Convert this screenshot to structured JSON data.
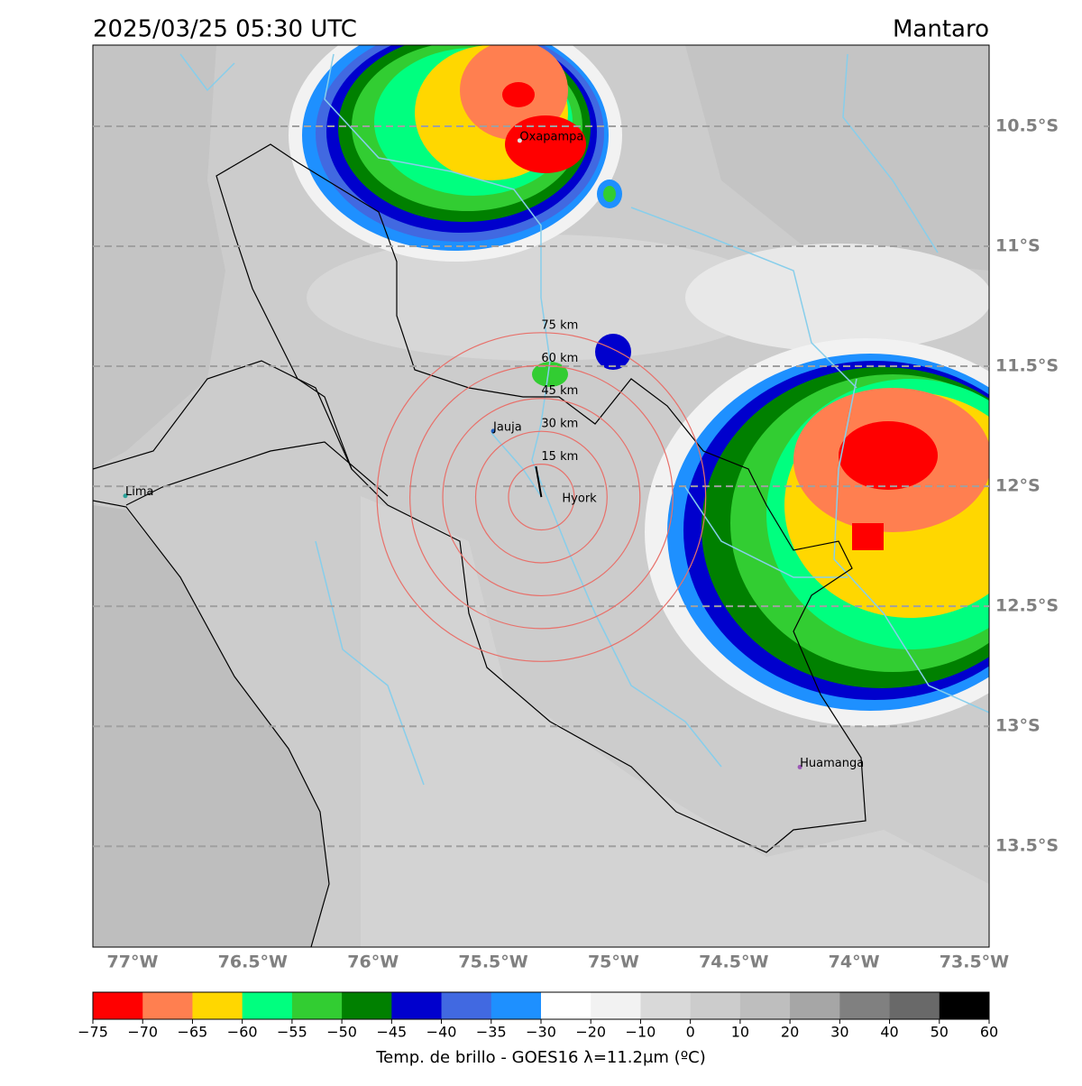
{
  "header": {
    "title": "2025/03/25 05:30 UTC",
    "region": "Mantaro"
  },
  "map": {
    "lon_range": [
      -77.165,
      -73.438
    ],
    "lat_range": [
      -10.162,
      -13.92
    ],
    "lat_ticks": [
      {
        "value": -10.5,
        "label": "10.5°S"
      },
      {
        "value": -11,
        "label": "11°S"
      },
      {
        "value": -11.5,
        "label": "11.5°S"
      },
      {
        "value": -12,
        "label": "12°S"
      },
      {
        "value": -12.5,
        "label": "12.5°S"
      },
      {
        "value": -13,
        "label": "13°S"
      },
      {
        "value": -13.5,
        "label": "13.5°S"
      }
    ],
    "lon_ticks": [
      {
        "value": -77,
        "label": "77°W"
      },
      {
        "value": -76.5,
        "label": "76.5°W"
      },
      {
        "value": -76,
        "label": "76°W"
      },
      {
        "value": -75.5,
        "label": "75.5°W"
      },
      {
        "value": -75,
        "label": "75°W"
      },
      {
        "value": -74.5,
        "label": "74.5°W"
      },
      {
        "value": -74,
        "label": "74°W"
      },
      {
        "value": -73.5,
        "label": "73.5°W"
      }
    ],
    "places": [
      {
        "name": "Oxapampa",
        "lon": -75.39,
        "lat": -10.56,
        "color": "#e0e0e0"
      },
      {
        "name": "Jauja",
        "lon": -75.5,
        "lat": -11.77,
        "color": "#1f5fbf"
      },
      {
        "name": "Lima",
        "lon": -77.03,
        "lat": -12.04,
        "color": "#2aa198"
      },
      {
        "name": "Huamanga",
        "lon": -74.225,
        "lat": -13.17,
        "color": "#9b59b6"
      }
    ],
    "radar": {
      "name": "Hyork",
      "lon": -75.3,
      "lat": -12.045,
      "rings": [
        {
          "value": 15,
          "label": "15 km"
        },
        {
          "value": 30,
          "label": "30 km"
        },
        {
          "value": 45,
          "label": "45 km"
        },
        {
          "value": 60,
          "label": "60 km"
        },
        {
          "value": 75,
          "label": "75 km"
        }
      ]
    }
  },
  "colorbar": {
    "label": "Temp. de brillo - GOES16 λ=11.2μm (ºC)",
    "bounds": [
      {
        "value": -75,
        "label": "−75"
      },
      {
        "value": -70,
        "label": "−70"
      },
      {
        "value": -65,
        "label": "−65"
      },
      {
        "value": -60,
        "label": "−60"
      },
      {
        "value": -55,
        "label": "−55"
      },
      {
        "value": -50,
        "label": "−50"
      },
      {
        "value": -45,
        "label": "−45"
      },
      {
        "value": -40,
        "label": "−40"
      },
      {
        "value": -35,
        "label": "−35"
      },
      {
        "value": -30,
        "label": "−30"
      },
      {
        "value": -20,
        "label": "−20"
      },
      {
        "value": -10,
        "label": "−10"
      },
      0,
      10,
      20,
      30,
      40,
      50,
      60
    ],
    "colors": [
      "#ff0000",
      "#ff7f50",
      "#ffd700",
      "#00ff7f",
      "#32cd32",
      "#008000",
      "#0000cd",
      "#4169e1",
      "#1e90ff",
      "#ffffff",
      "#f2f2f2",
      "#d9d9d9",
      "#cccccc",
      "#bebebe",
      "#a6a6a6",
      "#808080",
      "#696969",
      "#000000"
    ]
  }
}
